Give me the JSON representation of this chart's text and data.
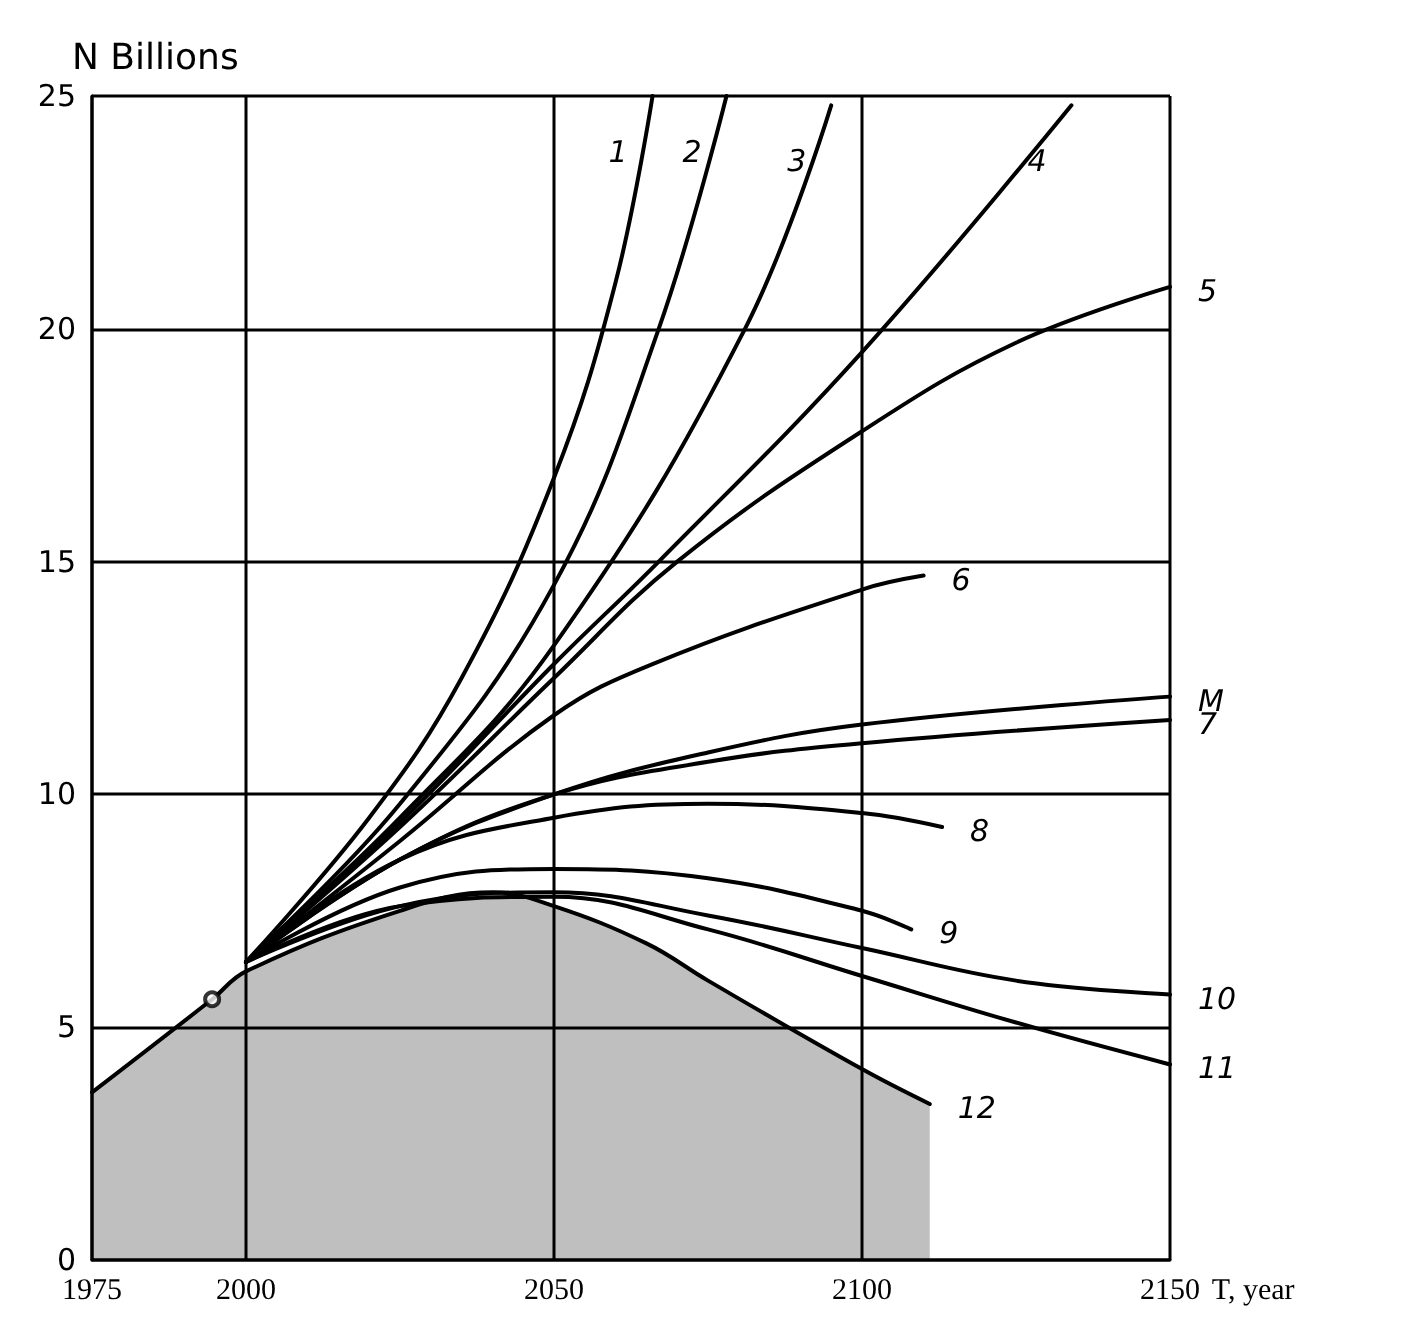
{
  "chart_data": {
    "type": "line",
    "ylabel": "N Billions",
    "xlabel": "T, year",
    "xlim": [
      1975,
      2150
    ],
    "xticks": [
      1975,
      2000,
      2050,
      2100,
      2150
    ],
    "ylim": [
      0,
      25
    ],
    "yticks": [
      0,
      5,
      10,
      15,
      20,
      25
    ],
    "grid": true,
    "legend": false,
    "marker": "none",
    "series": [
      {
        "name": "12",
        "type": "area",
        "color": "#000000",
        "x": [
          1975,
          1994.5,
          2000,
          2025,
          2040,
          2050,
          2065,
          2075,
          2100,
          2111
        ],
        "values": [
          3.6,
          5.6,
          6.2,
          7.5,
          7.9,
          7.6,
          6.8,
          6.0,
          4.1,
          3.35
        ]
      },
      {
        "name": "1",
        "color": "#000000",
        "x": [
          2000,
          2020,
          2035,
          2050,
          2060,
          2066
        ],
        "values": [
          6.4,
          9.5,
          12.5,
          16.8,
          21,
          25
        ]
      },
      {
        "name": "2",
        "color": "#000000",
        "x": [
          2000,
          2025,
          2050,
          2067,
          2078
        ],
        "values": [
          6.4,
          9.8,
          14.5,
          20,
          25
        ]
      },
      {
        "name": "3",
        "color": "#000000",
        "x": [
          2000,
          2025,
          2050,
          2081,
          2095
        ],
        "values": [
          6.4,
          9.5,
          13.2,
          20,
          24.8
        ]
      },
      {
        "name": "4",
        "color": "#000000",
        "x": [
          2000,
          2025,
          2050,
          2067,
          2100,
          2134
        ],
        "values": [
          6.4,
          9.4,
          12.8,
          15,
          19.5,
          24.8
        ]
      },
      {
        "name": "5",
        "color": "#000000",
        "x": [
          2000,
          2025,
          2050,
          2070,
          2100,
          2125,
          2150
        ],
        "values": [
          6.4,
          9.3,
          12.5,
          15,
          17.8,
          19.7,
          20.9
        ]
      },
      {
        "name": "6",
        "color": "#000000",
        "x": [
          2000,
          2025,
          2050,
          2066,
          2100,
          2110
        ],
        "values": [
          6.4,
          9.0,
          11.7,
          12.8,
          14.4,
          14.7
        ]
      },
      {
        "name": "M",
        "color": "#000000",
        "x": [
          2000,
          2025,
          2050,
          2075,
          2100,
          2150
        ],
        "values": [
          6.4,
          8.6,
          10.0,
          10.9,
          11.5,
          12.1
        ]
      },
      {
        "name": "7",
        "color": "#000000",
        "x": [
          2000,
          2025,
          2050,
          2075,
          2100,
          2150
        ],
        "values": [
          6.4,
          8.6,
          10.0,
          10.7,
          11.1,
          11.6
        ]
      },
      {
        "name": "8",
        "color": "#000000",
        "x": [
          2000,
          2025,
          2050,
          2075,
          2100,
          2113
        ],
        "values": [
          6.4,
          8.6,
          9.5,
          9.8,
          9.6,
          9.3
        ]
      },
      {
        "name": "9",
        "color": "#000000",
        "x": [
          2000,
          2025,
          2050,
          2075,
          2100,
          2108
        ],
        "values": [
          6.4,
          8.0,
          8.4,
          8.2,
          7.5,
          7.1
        ]
      },
      {
        "name": "10",
        "color": "#000000",
        "x": [
          2000,
          2025,
          2050,
          2075,
          2100,
          2125,
          2150
        ],
        "values": [
          6.4,
          7.6,
          7.9,
          7.4,
          6.7,
          6.0,
          5.7
        ]
      },
      {
        "name": "11",
        "color": "#000000",
        "x": [
          2000,
          2025,
          2050,
          2075,
          2100,
          2125,
          2150
        ],
        "values": [
          6.4,
          7.6,
          7.8,
          7.1,
          6.1,
          5.1,
          4.2
        ]
      },
      {
        "type": "scatter",
        "marker": "circle",
        "color": "#000000",
        "x": [
          1994.5
        ],
        "values": [
          5.6
        ]
      }
    ]
  }
}
